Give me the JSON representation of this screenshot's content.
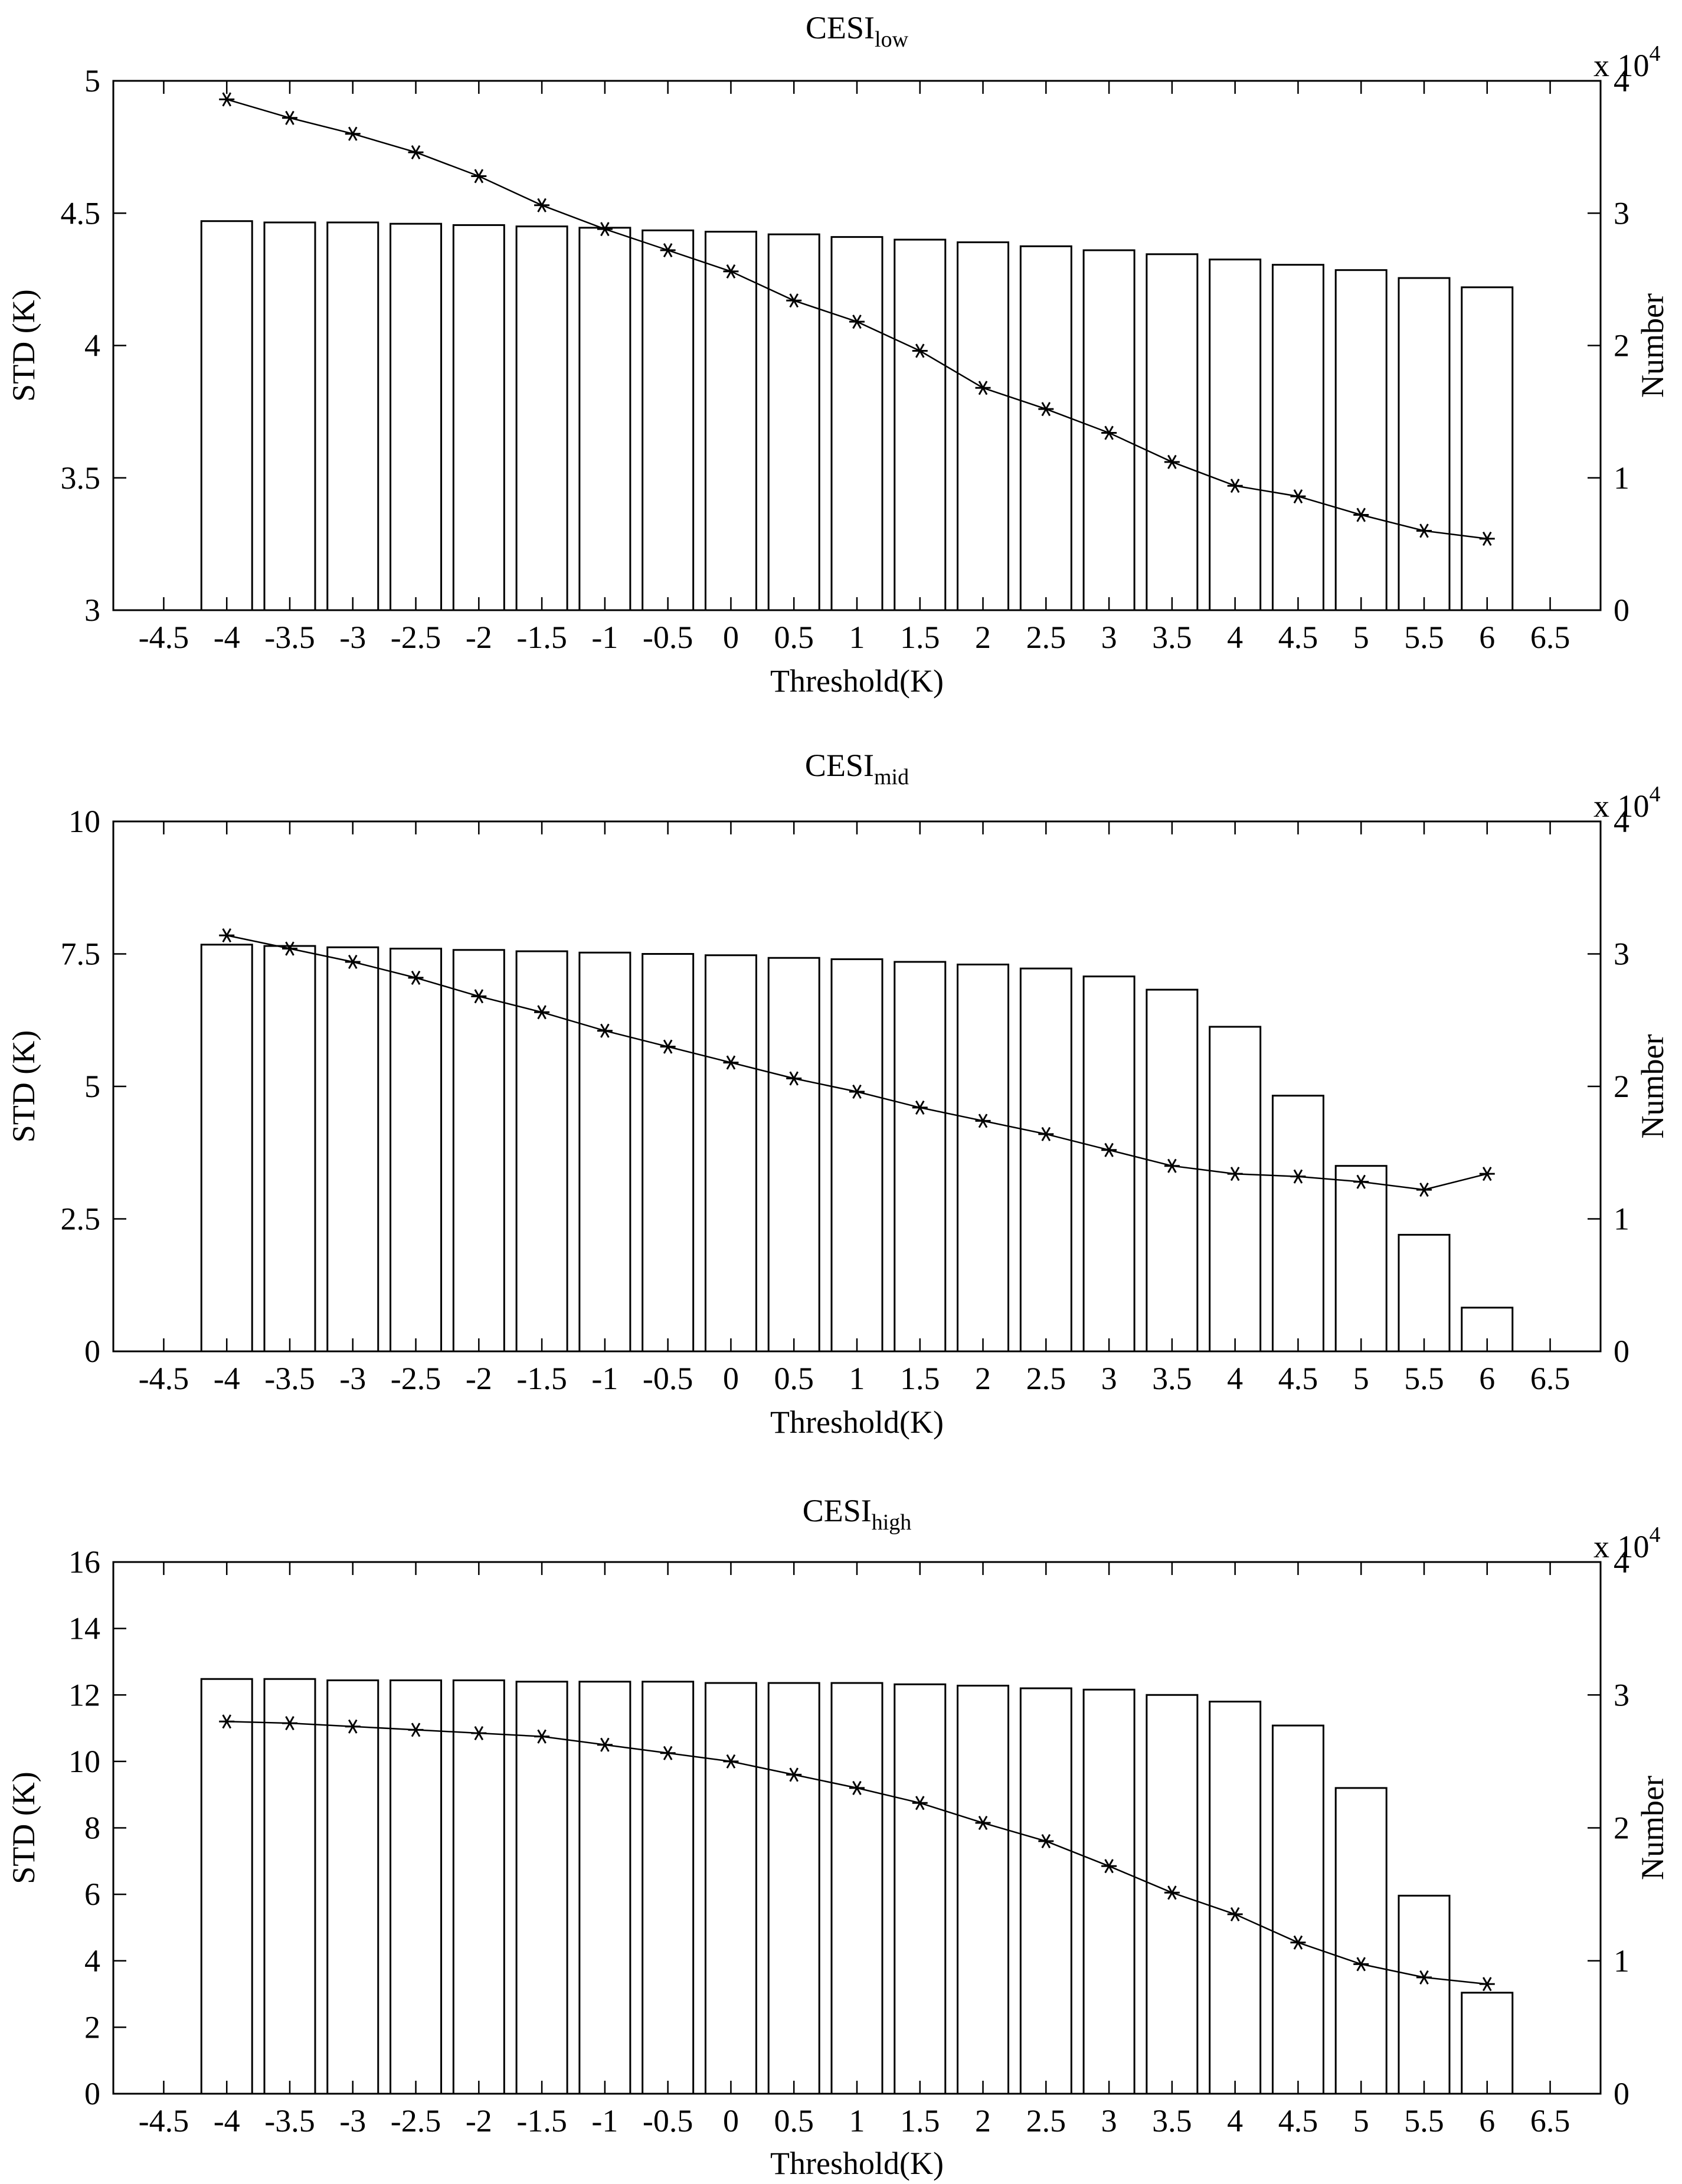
{
  "chart_data": [
    {
      "type": "bar+line",
      "title": "CESI",
      "title_subscript": "low",
      "xlabel": "Threshold(K)",
      "ylabel_left": "STD (K)",
      "ylabel_right": "Number",
      "right_axis_multiplier": "x 10",
      "right_axis_exponent": "4",
      "x_ticks": [
        "-4.5",
        "-4",
        "-3.5",
        "-3",
        "-2.5",
        "-2",
        "-1.5",
        "-1",
        "-0.5",
        "0",
        "0.5",
        "1",
        "1.5",
        "2",
        "2.5",
        "3",
        "3.5",
        "4",
        "4.5",
        "5",
        "5.5",
        "6",
        "6.5"
      ],
      "xlim": [
        -4.9,
        6.9
      ],
      "ylim_left": [
        3,
        5
      ],
      "ylim_right": [
        0,
        4
      ],
      "left_ticks": [
        "3",
        "3.5",
        "4",
        "4.5",
        "5"
      ],
      "right_ticks": [
        "0",
        "1",
        "2",
        "3",
        "4"
      ],
      "categories": [
        -4,
        -3.5,
        -3,
        -2.5,
        -2,
        -1.5,
        -1,
        -0.5,
        0,
        0.5,
        1,
        1.5,
        2,
        2.5,
        3,
        3.5,
        4,
        4.5,
        5,
        5.5,
        6
      ],
      "series": [
        {
          "name": "Number (x 10^4)",
          "kind": "bar",
          "axis": "right",
          "values": [
            2.94,
            2.93,
            2.93,
            2.92,
            2.91,
            2.9,
            2.89,
            2.87,
            2.86,
            2.84,
            2.82,
            2.8,
            2.78,
            2.75,
            2.72,
            2.69,
            2.65,
            2.61,
            2.57,
            2.51,
            2.44
          ]
        },
        {
          "name": "STD (K)",
          "kind": "line",
          "marker": "asterisk",
          "axis": "left",
          "values": [
            4.93,
            4.86,
            4.8,
            4.73,
            4.64,
            4.53,
            4.44,
            4.36,
            4.28,
            4.17,
            4.09,
            3.98,
            3.84,
            3.76,
            3.67,
            3.56,
            3.47,
            3.43,
            3.36,
            3.3,
            3.27
          ]
        }
      ]
    },
    {
      "type": "bar+line",
      "title": "CESI",
      "title_subscript": "mid",
      "xlabel": "Threshold(K)",
      "ylabel_left": "STD (K)",
      "ylabel_right": "Number",
      "right_axis_multiplier": "x 10",
      "right_axis_exponent": "4",
      "x_ticks": [
        "-4.5",
        "-4",
        "-3.5",
        "-3",
        "-2.5",
        "-2",
        "-1.5",
        "-1",
        "-0.5",
        "0",
        "0.5",
        "1",
        "1.5",
        "2",
        "2.5",
        "3",
        "3.5",
        "4",
        "4.5",
        "5",
        "5.5",
        "6",
        "6.5"
      ],
      "xlim": [
        -4.9,
        6.9
      ],
      "ylim_left": [
        0,
        10
      ],
      "ylim_right": [
        0,
        4
      ],
      "left_ticks": [
        "0",
        "2.5",
        "5",
        "7.5",
        "10"
      ],
      "right_ticks": [
        "0",
        "1",
        "2",
        "3",
        "4"
      ],
      "categories": [
        -4,
        -3.5,
        -3,
        -2.5,
        -2,
        -1.5,
        -1,
        -0.5,
        0,
        0.5,
        1,
        1.5,
        2,
        2.5,
        3,
        3.5,
        4,
        4.5,
        5,
        5.5,
        6
      ],
      "series": [
        {
          "name": "Number (x 10^4)",
          "kind": "bar",
          "axis": "right",
          "values": [
            3.07,
            3.06,
            3.05,
            3.04,
            3.03,
            3.02,
            3.01,
            3.0,
            2.99,
            2.97,
            2.96,
            2.94,
            2.92,
            2.89,
            2.83,
            2.73,
            2.45,
            1.93,
            1.4,
            0.88,
            0.33
          ]
        },
        {
          "name": "STD (K)",
          "kind": "line",
          "marker": "asterisk",
          "axis": "left",
          "values": [
            7.85,
            7.6,
            7.35,
            7.05,
            6.7,
            6.4,
            6.05,
            5.75,
            5.45,
            5.15,
            4.9,
            4.6,
            4.35,
            4.1,
            3.8,
            3.5,
            3.35,
            3.3,
            3.2,
            3.05,
            3.35
          ]
        }
      ]
    },
    {
      "type": "bar+line",
      "title": "CESI",
      "title_subscript": "high",
      "xlabel": "Threshold(K)",
      "ylabel_left": "STD (K)",
      "ylabel_right": "Number",
      "right_axis_multiplier": "x 10",
      "right_axis_exponent": "4",
      "x_ticks": [
        "-4.5",
        "-4",
        "-3.5",
        "-3",
        "-2.5",
        "-2",
        "-1.5",
        "-1",
        "-0.5",
        "0",
        "0.5",
        "1",
        "1.5",
        "2",
        "2.5",
        "3",
        "3.5",
        "4",
        "4.5",
        "5",
        "5.5",
        "6",
        "6.5"
      ],
      "xlim": [
        -4.9,
        6.9
      ],
      "ylim_left": [
        0,
        16
      ],
      "ylim_right": [
        0,
        4
      ],
      "left_ticks": [
        "0",
        "2",
        "4",
        "6",
        "8",
        "10",
        "12",
        "14",
        "16"
      ],
      "right_ticks": [
        "0",
        "1",
        "2",
        "3",
        "4"
      ],
      "categories": [
        -4,
        -3.5,
        -3,
        -2.5,
        -2,
        -1.5,
        -1,
        -0.5,
        0,
        0.5,
        1,
        1.5,
        2,
        2.5,
        3,
        3.5,
        4,
        4.5,
        5,
        5.5,
        6
      ],
      "series": [
        {
          "name": "Number (x 10^4)",
          "kind": "bar",
          "axis": "right",
          "values": [
            3.12,
            3.12,
            3.11,
            3.11,
            3.11,
            3.1,
            3.1,
            3.1,
            3.09,
            3.09,
            3.09,
            3.08,
            3.07,
            3.05,
            3.04,
            3.0,
            2.95,
            2.77,
            2.3,
            1.49,
            0.76
          ]
        },
        {
          "name": "STD (K)",
          "kind": "line",
          "marker": "asterisk",
          "axis": "left",
          "values": [
            11.2,
            11.15,
            11.05,
            10.95,
            10.85,
            10.75,
            10.5,
            10.25,
            10.0,
            9.6,
            9.2,
            8.75,
            8.15,
            7.6,
            6.85,
            6.05,
            5.4,
            4.55,
            3.9,
            3.5,
            3.3
          ]
        }
      ]
    }
  ]
}
